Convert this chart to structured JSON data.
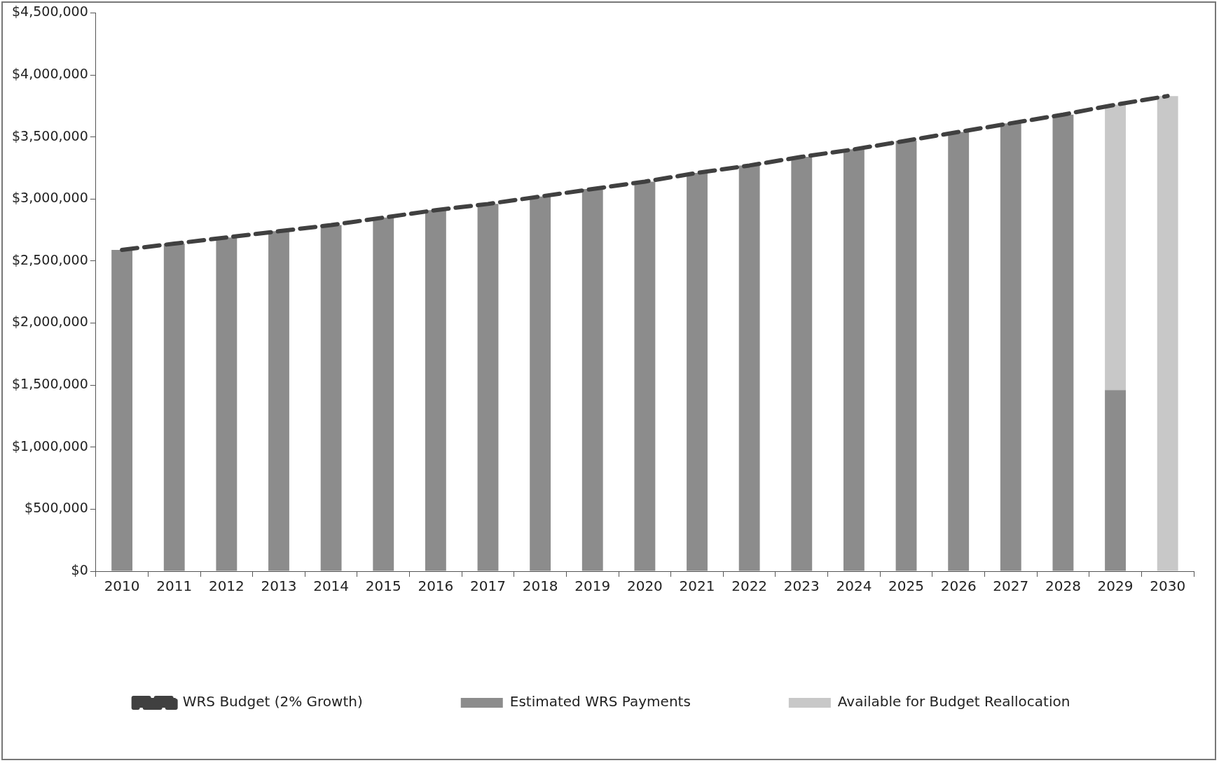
{
  "chart_data": {
    "type": "bar",
    "stacked": true,
    "categories": [
      "2010",
      "2011",
      "2012",
      "2013",
      "2014",
      "2015",
      "2016",
      "2017",
      "2018",
      "2019",
      "2020",
      "2021",
      "2022",
      "2023",
      "2024",
      "2025",
      "2026",
      "2027",
      "2028",
      "2029",
      "2030"
    ],
    "series": [
      {
        "name": "Estimated WRS Payments",
        "color": "#8c8c8c",
        "values": [
          2590000,
          2640000,
          2690000,
          2740000,
          2790000,
          2850000,
          2910000,
          2960000,
          3020000,
          3080000,
          3140000,
          3210000,
          3270000,
          3340000,
          3400000,
          3470000,
          3540000,
          3610000,
          3680000,
          1460000,
          0
        ]
      },
      {
        "name": "Available for Budget Reallocation",
        "color": "#c8c8c8",
        "values": [
          null,
          null,
          null,
          null,
          null,
          null,
          null,
          null,
          null,
          null,
          null,
          null,
          null,
          null,
          null,
          null,
          null,
          null,
          null,
          2300000,
          3830000
        ]
      },
      {
        "name": "WRS Budget (2% Growth)",
        "type": "line",
        "color": "#404040",
        "line_style": "dashed",
        "marker": "none",
        "values": [
          2590000,
          2640000,
          2690000,
          2740000,
          2790000,
          2850000,
          2910000,
          2960000,
          3020000,
          3080000,
          3140000,
          3210000,
          3270000,
          3340000,
          3400000,
          3470000,
          3540000,
          3610000,
          3680000,
          3760000,
          3830000
        ]
      }
    ],
    "ylim": [
      0,
      4500000
    ],
    "yticks": [
      {
        "value": 0,
        "label": "$0"
      },
      {
        "value": 500000,
        "label": "$500,000"
      },
      {
        "value": 1000000,
        "label": "$1,000,000"
      },
      {
        "value": 1500000,
        "label": "$1,500,000"
      },
      {
        "value": 2000000,
        "label": "$2,000,000"
      },
      {
        "value": 2500000,
        "label": "$2,500,000"
      },
      {
        "value": 3000000,
        "label": "$3,000,000"
      },
      {
        "value": 3500000,
        "label": "$3,500,000"
      },
      {
        "value": 4000000,
        "label": "$4,000,000"
      },
      {
        "value": 4500000,
        "label": "$4,500,000"
      }
    ],
    "grid": false,
    "legend": "bottom"
  }
}
